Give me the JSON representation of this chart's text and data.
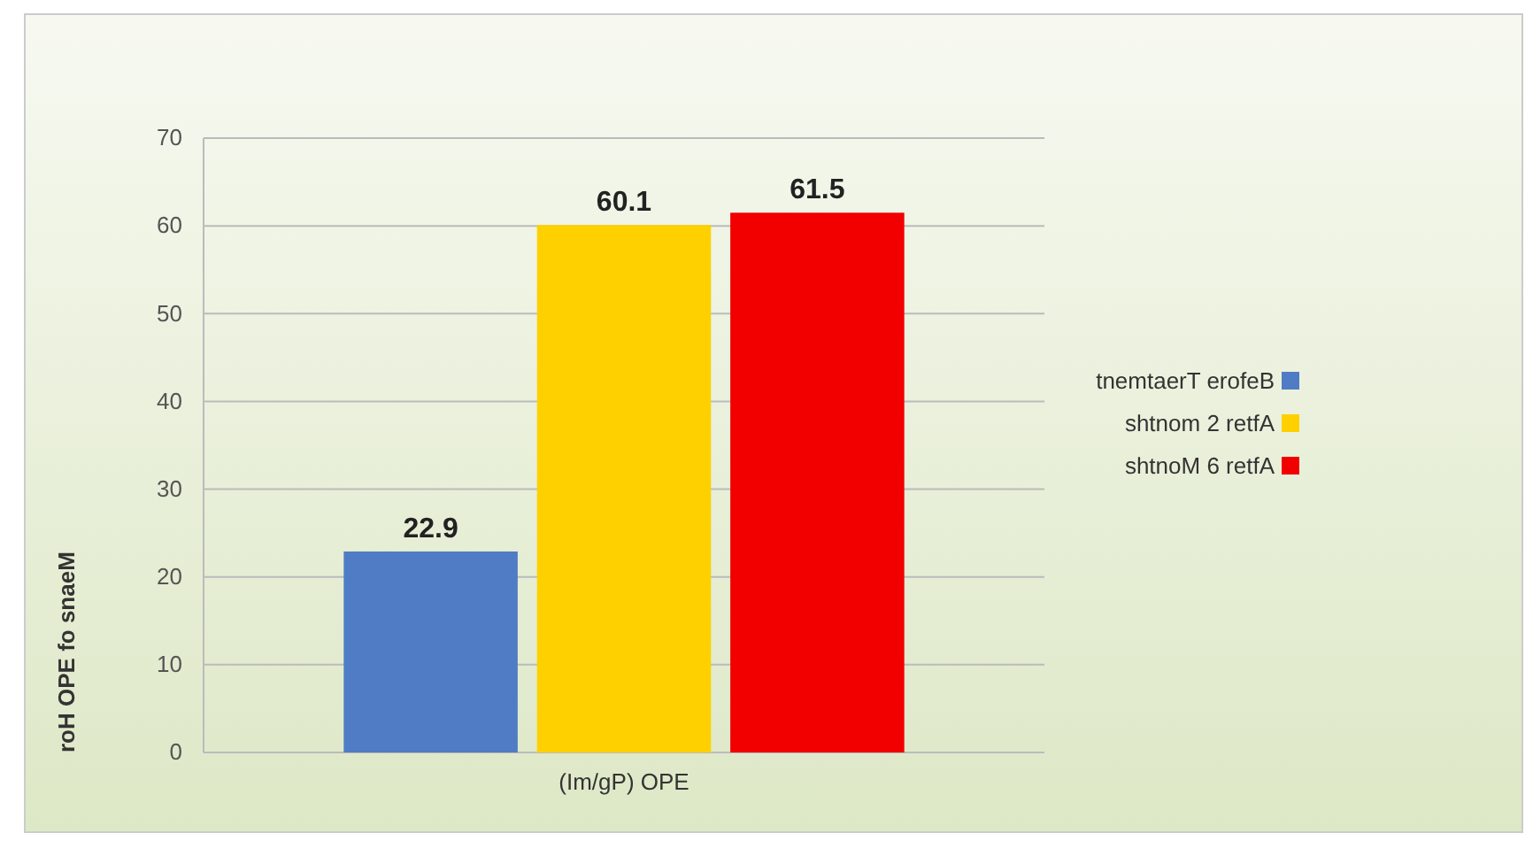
{
  "chart_data": {
    "type": "bar",
    "ylabel": "roH OPE fo snaeM",
    "categories": [
      "(Im/gP) OPE"
    ],
    "series": [
      {
        "name": "tnemtaerT erofeB",
        "color": "#4f7cc4",
        "values": [
          22.9
        ]
      },
      {
        "name": "shtnom 2 retfA",
        "color": "#ffd000",
        "values": [
          60.1
        ]
      },
      {
        "name": "shtnoM 6 retfA",
        "color": "#f20000",
        "values": [
          61.5
        ]
      }
    ],
    "ylim": [
      0,
      70
    ],
    "yticks": [
      0,
      10,
      20,
      30,
      40,
      50,
      60,
      70
    ],
    "data_labels": true,
    "grid": "y",
    "legend": "right"
  }
}
